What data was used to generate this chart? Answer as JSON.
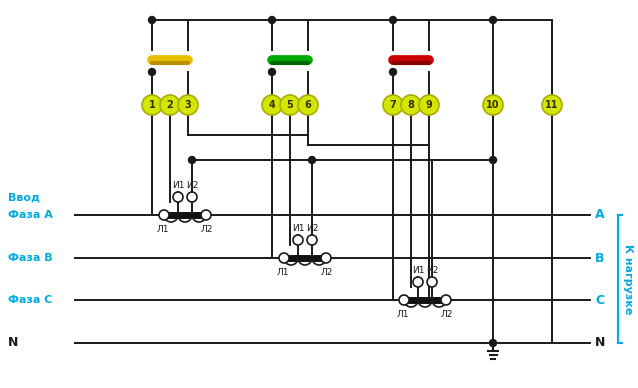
{
  "bg_color": "#ffffff",
  "line_color": "#1a1a1a",
  "phase_label_color": "#00aadd",
  "terminal_bg": "#d4e600",
  "fuse_yellow": "#e8c000",
  "fuse_green": "#00aa00",
  "fuse_red": "#cc0000",
  "phase_labels_left": [
    "Ввод",
    "Фаза A",
    "Фаза B",
    "Фаза C",
    "N"
  ],
  "phase_labels_right": [
    "A",
    "B",
    "C",
    "N"
  ],
  "right_label": "К нагрузке",
  "terminal_numbers": [
    "1",
    "2",
    "3",
    "4",
    "5",
    "6",
    "7",
    "8",
    "9",
    "10",
    "11"
  ]
}
